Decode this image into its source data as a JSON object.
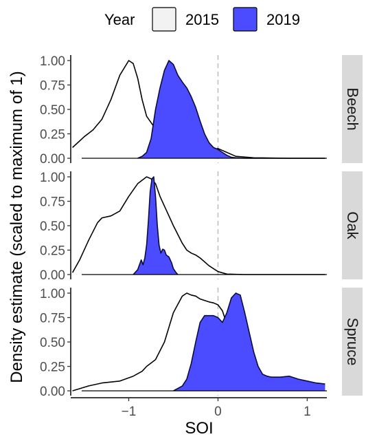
{
  "legend": {
    "title": "Year",
    "entries": [
      {
        "label": "2015",
        "fill": "#f2f2f2"
      },
      {
        "label": "2019",
        "fill": "#4b4bff"
      }
    ]
  },
  "chart_data": {
    "type": "area",
    "xlabel": "SOI",
    "ylabel": "Density estimate (scaled to maximum of 1)",
    "xlim": [
      -1.65,
      1.22
    ],
    "ylim": [
      0,
      1.0
    ],
    "x_ticks": [
      -1,
      0,
      1
    ],
    "x_tick_labels": [
      "−1",
      "0",
      "1"
    ],
    "y_ticks": [
      0,
      0.25,
      0.5,
      0.75,
      1.0
    ],
    "y_tick_labels": [
      "0.00",
      "0.25",
      "0.50",
      "0.75",
      "1.00"
    ],
    "reference_line_x": 0,
    "grid": false,
    "legend_position": "top",
    "facets": [
      {
        "label": "Beech",
        "series": [
          {
            "name": "2015",
            "x": [
              -1.63,
              -1.5,
              -1.4,
              -1.3,
              -1.2,
              -1.1,
              -1.0,
              -0.95,
              -0.9,
              -0.85,
              -0.8,
              -0.7,
              -0.6,
              -0.5,
              -0.4,
              -0.3,
              -0.2,
              -0.1,
              0.0,
              0.1,
              0.2,
              0.4,
              0.8,
              1.2
            ],
            "y": [
              0.11,
              0.22,
              0.29,
              0.4,
              0.6,
              0.85,
              1.0,
              0.97,
              0.82,
              0.6,
              0.43,
              0.3,
              0.25,
              0.25,
              0.19,
              0.11,
              0.06,
              0.07,
              0.1,
              0.06,
              0.02,
              0.005,
              0.0,
              0.0
            ]
          },
          {
            "name": "2019",
            "x": [
              -0.9,
              -0.85,
              -0.8,
              -0.75,
              -0.7,
              -0.65,
              -0.6,
              -0.55,
              -0.5,
              -0.45,
              -0.4,
              -0.35,
              -0.3,
              -0.25,
              -0.2,
              -0.15,
              -0.1,
              -0.05,
              0.0,
              0.05,
              0.1,
              0.15,
              0.2,
              0.3,
              0.5,
              0.8,
              1.2
            ],
            "y": [
              0.0,
              0.02,
              0.06,
              0.2,
              0.5,
              0.72,
              0.9,
              1.0,
              0.96,
              0.85,
              0.78,
              0.72,
              0.63,
              0.52,
              0.38,
              0.25,
              0.16,
              0.11,
              0.09,
              0.06,
              0.03,
              0.01,
              0.005,
              0.0,
              0.0,
              0.0,
              0.0
            ]
          }
        ]
      },
      {
        "label": "Oak",
        "series": [
          {
            "name": "2015",
            "x": [
              -1.63,
              -1.55,
              -1.45,
              -1.35,
              -1.3,
              -1.2,
              -1.1,
              -1.0,
              -0.9,
              -0.8,
              -0.75,
              -0.7,
              -0.65,
              -0.6,
              -0.5,
              -0.4,
              -0.35,
              -0.3,
              -0.25,
              -0.2,
              -0.1,
              0.0,
              0.1,
              0.3,
              0.6,
              1.2
            ],
            "y": [
              0.02,
              0.15,
              0.35,
              0.53,
              0.58,
              0.6,
              0.65,
              0.8,
              0.93,
              1.0,
              0.98,
              0.93,
              0.8,
              0.7,
              0.5,
              0.32,
              0.25,
              0.22,
              0.2,
              0.17,
              0.09,
              0.03,
              0.005,
              0.0,
              0.0,
              0.0
            ],
            "comment_free": true
          },
          {
            "name": "2019",
            "x": [
              -0.95,
              -0.9,
              -0.86,
              -0.84,
              -0.82,
              -0.8,
              -0.78,
              -0.76,
              -0.74,
              -0.72,
              -0.7,
              -0.68,
              -0.66,
              -0.64,
              -0.62,
              -0.6,
              -0.58,
              -0.55,
              -0.52,
              -0.5,
              -0.47,
              -0.45
            ],
            "y": [
              0.0,
              0.05,
              0.15,
              0.1,
              0.17,
              0.3,
              0.55,
              0.85,
              0.98,
              1.0,
              0.8,
              0.5,
              0.3,
              0.22,
              0.26,
              0.25,
              0.2,
              0.18,
              0.12,
              0.06,
              0.02,
              0.0
            ]
          }
        ]
      },
      {
        "label": "Spruce",
        "series": [
          {
            "name": "2015",
            "x": [
              -1.63,
              -1.45,
              -1.3,
              -1.1,
              -0.95,
              -0.85,
              -0.8,
              -0.7,
              -0.6,
              -0.5,
              -0.4,
              -0.35,
              -0.3,
              -0.25,
              -0.2,
              -0.1,
              -0.05,
              0.0,
              0.05,
              0.1,
              0.2,
              0.3,
              0.4,
              0.5,
              0.6,
              0.7,
              0.8,
              1.0,
              1.2
            ],
            "y": [
              0.0,
              0.05,
              0.08,
              0.1,
              0.15,
              0.2,
              0.25,
              0.32,
              0.5,
              0.8,
              0.97,
              1.0,
              0.98,
              0.97,
              0.94,
              0.91,
              0.9,
              0.88,
              0.82,
              0.68,
              0.5,
              0.33,
              0.2,
              0.12,
              0.07,
              0.05,
              0.05,
              0.06,
              0.05
            ]
          },
          {
            "name": "2019",
            "x": [
              -0.5,
              -0.4,
              -0.35,
              -0.3,
              -0.25,
              -0.2,
              -0.15,
              -0.1,
              -0.05,
              0.0,
              0.05,
              0.1,
              0.15,
              0.2,
              0.25,
              0.3,
              0.35,
              0.4,
              0.45,
              0.5,
              0.55,
              0.6,
              0.7,
              0.8,
              0.9,
              1.0,
              1.1,
              1.2
            ],
            "y": [
              0.0,
              0.05,
              0.12,
              0.28,
              0.5,
              0.7,
              0.77,
              0.77,
              0.77,
              0.75,
              0.7,
              0.8,
              0.95,
              1.0,
              0.98,
              0.8,
              0.6,
              0.4,
              0.25,
              0.17,
              0.15,
              0.14,
              0.14,
              0.15,
              0.12,
              0.1,
              0.08,
              0.07
            ]
          }
        ]
      }
    ]
  }
}
